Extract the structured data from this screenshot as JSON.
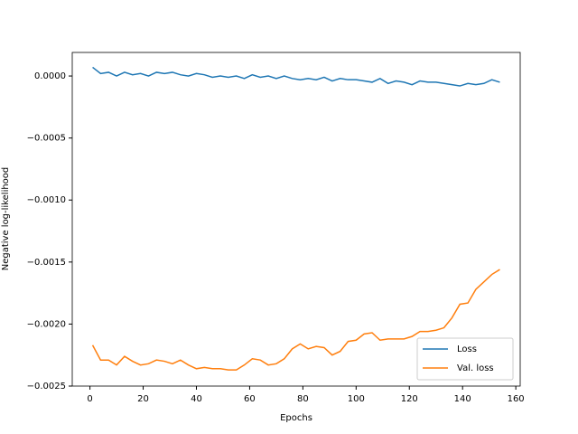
{
  "chart_data": {
    "type": "line",
    "xlabel": "Epochs",
    "ylabel": "Negative log-likelihood",
    "x": [
      1,
      4,
      7,
      10,
      13,
      16,
      19,
      22,
      25,
      28,
      31,
      34,
      37,
      40,
      43,
      46,
      49,
      52,
      55,
      58,
      61,
      64,
      67,
      70,
      73,
      76,
      79,
      82,
      85,
      88,
      91,
      94,
      97,
      100,
      103,
      106,
      109,
      112,
      115,
      118,
      121,
      124,
      127,
      130,
      133,
      136,
      139,
      142,
      145,
      148,
      151,
      154
    ],
    "series": [
      {
        "name": "Loss",
        "color": "#1f77b4",
        "values": [
          7e-05,
          2e-05,
          3e-05,
          0.0,
          3e-05,
          1e-05,
          2e-05,
          0.0,
          3e-05,
          2e-05,
          3e-05,
          1e-05,
          0.0,
          2e-05,
          1e-05,
          -1e-05,
          0.0,
          -1e-05,
          0.0,
          -2e-05,
          1e-05,
          -1e-05,
          0.0,
          -2e-05,
          0.0,
          -2e-05,
          -3e-05,
          -2e-05,
          -3e-05,
          -1e-05,
          -4e-05,
          -2e-05,
          -3e-05,
          -3e-05,
          -4e-05,
          -5e-05,
          -2e-05,
          -6e-05,
          -4e-05,
          -5e-05,
          -7e-05,
          -4e-05,
          -5e-05,
          -5e-05,
          -6e-05,
          -7e-05,
          -8e-05,
          -6e-05,
          -7e-05,
          -6e-05,
          -3e-05,
          -5e-05
        ]
      },
      {
        "name": "Val. loss",
        "color": "#ff7f0e",
        "values": [
          -0.00217,
          -0.00229,
          -0.00229,
          -0.00233,
          -0.00226,
          -0.0023,
          -0.00233,
          -0.00232,
          -0.00229,
          -0.0023,
          -0.00232,
          -0.00229,
          -0.00233,
          -0.00236,
          -0.00235,
          -0.00236,
          -0.00236,
          -0.00237,
          -0.00237,
          -0.00233,
          -0.00228,
          -0.00229,
          -0.00233,
          -0.00232,
          -0.00228,
          -0.0022,
          -0.00216,
          -0.0022,
          -0.00218,
          -0.00219,
          -0.00225,
          -0.00222,
          -0.00214,
          -0.00213,
          -0.00208,
          -0.00207,
          -0.00213,
          -0.00212,
          -0.00212,
          -0.00212,
          -0.0021,
          -0.00206,
          -0.00206,
          -0.00205,
          -0.00203,
          -0.00195,
          -0.00184,
          -0.00183,
          -0.00172,
          -0.00166,
          -0.0016,
          -0.00156
        ]
      }
    ],
    "xlim": [
      -6.65,
      161.65
    ],
    "xticks": [
      0,
      20,
      40,
      60,
      80,
      100,
      120,
      140,
      160
    ],
    "ylim": [
      -0.0025,
      0.00019
    ],
    "yticks": [
      {
        "value": -0.0025,
        "label": "−0.0025"
      },
      {
        "value": -0.002,
        "label": "−0.0020"
      },
      {
        "value": -0.0015,
        "label": "−0.0015"
      },
      {
        "value": -0.001,
        "label": "−0.0010"
      },
      {
        "value": -0.0005,
        "label": "−0.0005"
      },
      {
        "value": 0,
        "label": "0.0000"
      }
    ],
    "legend": "lower right"
  }
}
